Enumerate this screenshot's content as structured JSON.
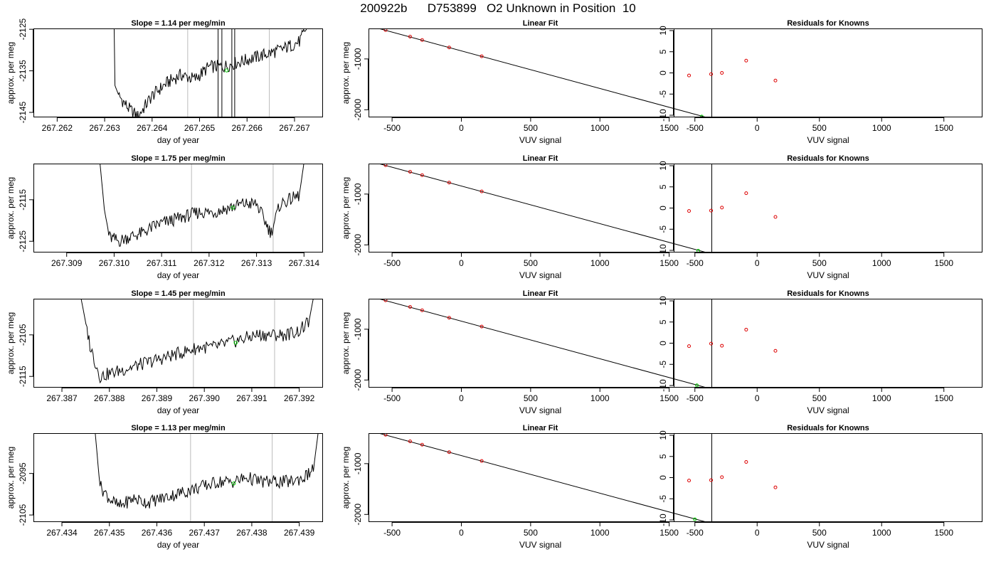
{
  "page_title": "200922b      D753899   O2 Unknown in Position  10",
  "chart_data": [
    {
      "type": "line",
      "row": 0,
      "panel": "timeseries",
      "title": "Slope =  1.14  per meg/min",
      "xlabel": "day of year",
      "ylabel": "approx. per meg",
      "xlim": [
        267.2615,
        267.2676
      ],
      "ylim": [
        -2146.2,
        -2124.8
      ],
      "xticks": [
        "267.262",
        "267.263",
        "267.264",
        "267.265",
        "267.266",
        "267.267"
      ],
      "yticks": [
        "-2125",
        "-2135",
        "-2145"
      ],
      "series": [
        {
          "x": [
            267.2632,
            267.2632,
            267.2633,
            267.2635,
            267.2637,
            267.264,
            267.2643,
            267.2646,
            267.2649,
            267.2652,
            267.2655,
            267.2658,
            267.2661,
            267.2664,
            267.2667,
            267.2669,
            267.2671,
            267.2673
          ],
          "y": [
            -2124,
            -2138,
            -2141,
            -2144,
            -2146,
            -2141,
            -2138,
            -2136,
            -2137,
            -2134,
            -2134,
            -2133,
            -2132,
            -2131,
            -2130,
            -2129,
            -2128,
            -2124
          ]
        }
      ],
      "vlines": [
        267.26475,
        267.26647
      ],
      "highlight_point": {
        "x": 267.26557,
        "y": -2134.9
      }
    },
    {
      "type": "scatter",
      "row": 0,
      "panel": "linear-fit",
      "title": "Linear Fit",
      "xlabel": "VUV signal",
      "ylabel": "approx. per meg",
      "xlim": [
        -670,
        1810
      ],
      "ylim": [
        -2150,
        -400
      ],
      "xticks": [
        -500,
        0,
        500,
        1000,
        1500
      ],
      "yticks": [
        -1000,
        -2000
      ],
      "knowns": {
        "x": [
          -547,
          -370,
          -283,
          -88,
          147
        ],
        "y": [
          -432,
          -561,
          -627,
          -775,
          -948
        ]
      },
      "unknown": {
        "x": 1735,
        "y": -2135
      },
      "fit_line": {
        "x": [
          -647,
          1790
        ],
        "y": [
          -363,
          -2166
        ]
      }
    },
    {
      "type": "scatter",
      "row": 0,
      "panel": "residuals",
      "title": "Residuals for Knowns",
      "xlabel": "VUV signal",
      "ylabel": "",
      "xlim": [
        -670,
        1810
      ],
      "ylim": [
        -10.5,
        10.5
      ],
      "xticks": [
        -500,
        0,
        500,
        1000,
        1500
      ],
      "yticks": [
        10,
        5,
        0,
        -5,
        -10
      ],
      "points": {
        "x": [
          -547,
          -370,
          -283,
          -88,
          147
        ],
        "y": [
          -0.6,
          -0.3,
          0.0,
          2.9,
          -1.8
        ]
      }
    },
    {
      "type": "line",
      "row": 1,
      "panel": "timeseries",
      "title": "Slope =  1.75  per meg/min",
      "xlabel": "day of year",
      "ylabel": "approx. per meg",
      "xlim": [
        267.3083,
        267.3144
      ],
      "ylim": [
        -2127.7,
        -2106.3
      ],
      "xticks": [
        "267.309",
        "267.310",
        "267.311",
        "267.312",
        "267.313",
        "267.314"
      ],
      "yticks": [
        "-2115",
        "-2125"
      ],
      "series": [
        {
          "x": [
            267.3097,
            267.3098,
            267.3099,
            267.3101,
            267.3103,
            267.3106,
            267.3109,
            267.3112,
            267.3115,
            267.3118,
            267.3121,
            267.3124,
            267.3127,
            267.313,
            267.3133,
            267.3135,
            267.3137,
            267.3139,
            267.314
          ],
          "y": [
            -2106,
            -2118,
            -2124,
            -2125,
            -2124,
            -2123,
            -2121,
            -2120,
            -2119,
            -2118,
            -2118,
            -2117,
            -2116,
            -2116,
            -2123,
            -2116,
            -2115,
            -2114,
            -2106
          ]
        }
      ],
      "vlines": [
        267.31163,
        267.31335
      ],
      "highlight_point": {
        "x": 267.3125,
        "y": -2116.9
      }
    },
    {
      "type": "scatter",
      "row": 1,
      "panel": "linear-fit",
      "title": "Linear Fit",
      "xlabel": "VUV signal",
      "ylabel": "approx. per meg",
      "xlim": [
        -670,
        1810
      ],
      "ylim": [
        -2150,
        -400
      ],
      "xticks": [
        -500,
        0,
        500,
        1000,
        1500
      ],
      "yticks": [
        -1000,
        -2000
      ],
      "knowns": {
        "x": [
          -547,
          -370,
          -283,
          -88,
          147
        ],
        "y": [
          -432,
          -561,
          -627,
          -775,
          -948
        ]
      },
      "unknown": {
        "x": 1710,
        "y": -2115
      },
      "fit_line": {
        "x": [
          -647,
          1790
        ],
        "y": [
          -363,
          -2166
        ]
      }
    },
    {
      "type": "scatter",
      "row": 1,
      "panel": "residuals",
      "title": "Residuals for Knowns",
      "xlabel": "VUV signal",
      "ylabel": "",
      "xlim": [
        -670,
        1810
      ],
      "ylim": [
        -10.5,
        10.5
      ],
      "xticks": [
        -500,
        0,
        500,
        1000,
        1500
      ],
      "yticks": [
        10,
        5,
        0,
        -5,
        -10
      ],
      "points": {
        "x": [
          -547,
          -370,
          -283,
          -88,
          147
        ],
        "y": [
          -0.7,
          -0.6,
          0.1,
          3.5,
          -2.1
        ]
      }
    },
    {
      "type": "line",
      "row": 2,
      "panel": "timeseries",
      "title": "Slope =  1.45  per meg/min",
      "xlabel": "day of year",
      "ylabel": "approx. per meg",
      "xlim": [
        267.3864,
        267.3925
      ],
      "ylim": [
        -2117.7,
        -2096.3
      ],
      "xticks": [
        "267.387",
        "267.388",
        "267.389",
        "267.390",
        "267.391",
        "267.392"
      ],
      "yticks": [
        "-2105",
        "-2115"
      ],
      "series": [
        {
          "x": [
            267.3874,
            267.3876,
            267.3878,
            267.3881,
            267.3884,
            267.3887,
            267.389,
            267.3893,
            267.3896,
            267.3899,
            267.3902,
            267.3905,
            267.3908,
            267.3911,
            267.3914,
            267.3917,
            267.392,
            267.3922,
            267.3923
          ],
          "y": [
            -2096,
            -2108,
            -2115,
            -2114,
            -2113,
            -2112,
            -2111,
            -2110,
            -2109,
            -2108,
            -2108,
            -2107,
            -2106,
            -2105,
            -2105,
            -2105,
            -2104,
            -2102,
            -2096
          ]
        }
      ],
      "vlines": [
        267.38977,
        267.39148
      ],
      "highlight_point": {
        "x": 267.39066,
        "y": -2106.9
      }
    },
    {
      "type": "scatter",
      "row": 2,
      "panel": "linear-fit",
      "title": "Linear Fit",
      "xlabel": "VUV signal",
      "ylabel": "approx. per meg",
      "xlim": [
        -670,
        1810
      ],
      "ylim": [
        -2150,
        -400
      ],
      "xticks": [
        -500,
        0,
        500,
        1000,
        1500
      ],
      "yticks": [
        -1000,
        -2000
      ],
      "knowns": {
        "x": [
          -547,
          -370,
          -283,
          -88,
          147
        ],
        "y": [
          -432,
          -561,
          -627,
          -775,
          -948
        ]
      },
      "unknown": {
        "x": 1700,
        "y": -2105
      },
      "fit_line": {
        "x": [
          -647,
          1790
        ],
        "y": [
          -363,
          -2166
        ]
      }
    },
    {
      "type": "scatter",
      "row": 2,
      "panel": "residuals",
      "title": "Residuals for Knowns",
      "xlabel": "VUV signal",
      "ylabel": "",
      "xlim": [
        -670,
        1810
      ],
      "ylim": [
        -10.5,
        10.5
      ],
      "xticks": [
        -500,
        0,
        500,
        1000,
        1500
      ],
      "yticks": [
        10,
        5,
        0,
        -5,
        -10
      ],
      "points": {
        "x": [
          -547,
          -370,
          -283,
          -88,
          147
        ],
        "y": [
          -0.7,
          -0.1,
          -0.6,
          3.2,
          -1.8
        ]
      }
    },
    {
      "type": "line",
      "row": 3,
      "panel": "timeseries",
      "title": "Slope =  1.13  per meg/min",
      "xlabel": "day of year",
      "ylabel": "approx. per meg",
      "xlim": [
        267.4334,
        267.4395
      ],
      "ylim": [
        -2106.7,
        -2085.3
      ],
      "xticks": [
        "267.434",
        "267.435",
        "267.436",
        "267.437",
        "267.438",
        "267.439"
      ],
      "yticks": [
        "-2095",
        "-2105"
      ],
      "series": [
        {
          "x": [
            267.4347,
            267.4348,
            267.435,
            267.4352,
            267.4355,
            267.4358,
            267.4361,
            267.4364,
            267.4367,
            267.437,
            267.4373,
            267.4376,
            267.4379,
            267.4382,
            267.4385,
            267.4388,
            267.4391,
            267.4393,
            267.4394
          ],
          "y": [
            -2085,
            -2098,
            -2101,
            -2103,
            -2101,
            -2102,
            -2101,
            -2100,
            -2099,
            -2098,
            -2097,
            -2097,
            -2096,
            -2097,
            -2097,
            -2097,
            -2096,
            -2094,
            -2085
          ]
        }
      ],
      "vlines": [
        267.43671,
        267.43843
      ],
      "highlight_point": {
        "x": 267.43762,
        "y": -2097.4
      }
    },
    {
      "type": "scatter",
      "row": 3,
      "panel": "linear-fit",
      "title": "Linear Fit",
      "xlabel": "VUV signal",
      "ylabel": "approx. per meg",
      "xlim": [
        -670,
        1810
      ],
      "ylim": [
        -2150,
        -400
      ],
      "xticks": [
        -500,
        0,
        500,
        1000,
        1500
      ],
      "yticks": [
        -1000,
        -2000
      ],
      "knowns": {
        "x": [
          -547,
          -370,
          -283,
          -88,
          147
        ],
        "y": [
          -432,
          -561,
          -627,
          -775,
          -948
        ]
      },
      "unknown": {
        "x": 1685,
        "y": -2095
      },
      "fit_line": {
        "x": [
          -647,
          1790
        ],
        "y": [
          -363,
          -2166
        ]
      }
    },
    {
      "type": "scatter",
      "row": 3,
      "panel": "residuals",
      "title": "Residuals for Knowns",
      "xlabel": "VUV signal",
      "ylabel": "",
      "xlim": [
        -670,
        1810
      ],
      "ylim": [
        -10.5,
        10.5
      ],
      "xticks": [
        -500,
        0,
        500,
        1000,
        1500
      ],
      "yticks": [
        10,
        5,
        0,
        -5,
        -10
      ],
      "points": {
        "x": [
          -547,
          -370,
          -283,
          -88,
          147
        ],
        "y": [
          -0.7,
          -0.6,
          0.1,
          3.7,
          -2.3
        ]
      }
    }
  ]
}
